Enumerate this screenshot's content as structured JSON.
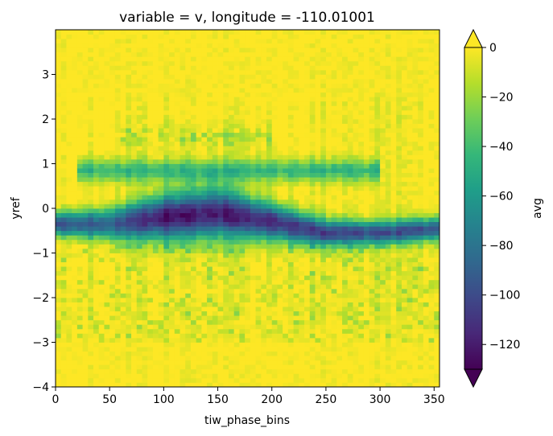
{
  "chart_data": {
    "type": "heatmap",
    "title": "variable = v, longitude = -110.01001",
    "xlabel": "tiw_phase_bins",
    "ylabel": "yref",
    "xlim": [
      0,
      355
    ],
    "ylim": [
      -4,
      4
    ],
    "x_ticks": [
      "0",
      "50",
      "100",
      "150",
      "200",
      "250",
      "300",
      "350"
    ],
    "x_tick_values": [
      0,
      50,
      100,
      150,
      200,
      250,
      300,
      350
    ],
    "y_ticks": [
      "−4",
      "−3",
      "−2",
      "−1",
      "0",
      "1",
      "2",
      "3"
    ],
    "y_tick_values": [
      -4,
      -3,
      -2,
      -1,
      0,
      1,
      2,
      3
    ],
    "colorbar": {
      "label": "avg",
      "vmin": -130,
      "vmax": 0,
      "ticks": [
        "0",
        "−20",
        "−40",
        "−60",
        "−80",
        "−100",
        "−120"
      ],
      "tick_values": [
        0,
        -20,
        -40,
        -60,
        -80,
        -100,
        -120
      ],
      "extend": "both",
      "colormap": "viridis"
    },
    "field": {
      "description_of_structure": "strong negative band centered near yref=-0.3, deepest (~-125) between x=90 and x=200, rising to ~+0.7 near x=150-200; secondary weaker band near yref=0.8; values near 0 elsewhere",
      "x_bin_width": 5,
      "y_bin_height": 0.1,
      "band_axis": [
        [
          0,
          -0.35
        ],
        [
          50,
          -0.35
        ],
        [
          100,
          -0.2
        ],
        [
          150,
          -0.1
        ],
        [
          200,
          -0.3
        ],
        [
          250,
          -0.55
        ],
        [
          300,
          -0.55
        ],
        [
          355,
          -0.45
        ]
      ],
      "band_depth": [
        [
          0,
          -100
        ],
        [
          50,
          -90
        ],
        [
          100,
          -125
        ],
        [
          150,
          -120
        ],
        [
          200,
          -115
        ],
        [
          250,
          -105
        ],
        [
          300,
          -100
        ],
        [
          355,
          -95
        ]
      ],
      "band_halfwidth": [
        [
          0,
          0.25
        ],
        [
          50,
          0.35
        ],
        [
          100,
          0.5
        ],
        [
          150,
          0.55
        ],
        [
          200,
          0.4
        ],
        [
          250,
          0.3
        ],
        [
          300,
          0.25
        ],
        [
          355,
          0.25
        ]
      ]
    },
    "colors": {
      "viridis": [
        "#440154",
        "#482878",
        "#3e4989",
        "#31688e",
        "#26828e",
        "#1f9e89",
        "#35b779",
        "#6ece58",
        "#b5de2b",
        "#fde725"
      ]
    }
  }
}
